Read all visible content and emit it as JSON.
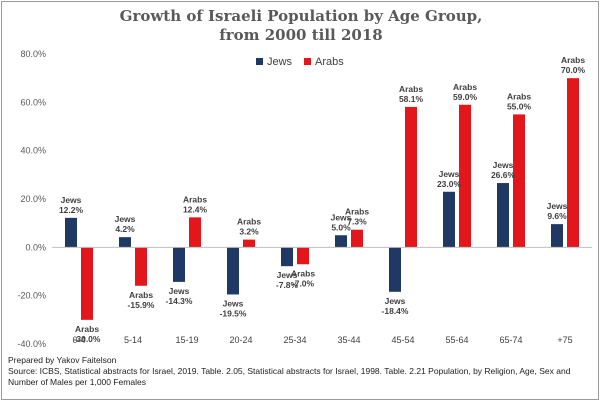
{
  "chart_data": {
    "type": "bar",
    "title": [
      "Growth of Israeli Population by Age Group,",
      "from 2000 till 2018"
    ],
    "categories": [
      "0-4",
      "5-14",
      "15-19",
      "20-24",
      "25-34",
      "35-44",
      "45-54",
      "55-64",
      "65-74",
      "+75"
    ],
    "series": [
      {
        "name": "Jews",
        "color": "#1f3864",
        "values": [
          12.2,
          4.2,
          -14.3,
          -19.5,
          -7.8,
          5.0,
          -18.4,
          23.0,
          26.6,
          9.6
        ],
        "labels": [
          "12.2%",
          "4.2%",
          "-14.3%",
          "-19.5%",
          "-7.8%",
          "5.0%",
          "-18.4%",
          "23.0%",
          "26.6%",
          "9.6%"
        ]
      },
      {
        "name": "Arabs",
        "color": "#e3161b",
        "values": [
          -30.0,
          -15.9,
          12.4,
          3.2,
          -7.0,
          7.3,
          58.1,
          59.0,
          55.0,
          70.0
        ],
        "labels": [
          "-30.0%",
          "-15.9%",
          "12.4%",
          "3.2%",
          "-7.0%",
          "7.3%",
          "58.1%",
          "59.0%",
          "55.0%",
          "70.0%"
        ]
      }
    ],
    "ylim": [
      -40,
      80
    ],
    "yticks": [
      80,
      60,
      40,
      20,
      0,
      -20,
      -40
    ],
    "ytick_labels": [
      "80.0%",
      "60.0%",
      "40.0%",
      "20.0%",
      "0.0%",
      "-20.0%",
      "-40.0%"
    ],
    "legend": {
      "position": "top-center",
      "entries": [
        "Jews",
        "Arabs"
      ]
    },
    "grid": false
  },
  "footer": {
    "prepared": "Prepared by Yakov Faitelson",
    "source": "Source: ICBS, Statistical abstracts for Israel, 2019.  Table. 2.05, Statistical abstracts for Israel, 1998.  Table. 2.21  Population, by Religion, Age, Sex and Number of Males per 1,000 Females"
  }
}
